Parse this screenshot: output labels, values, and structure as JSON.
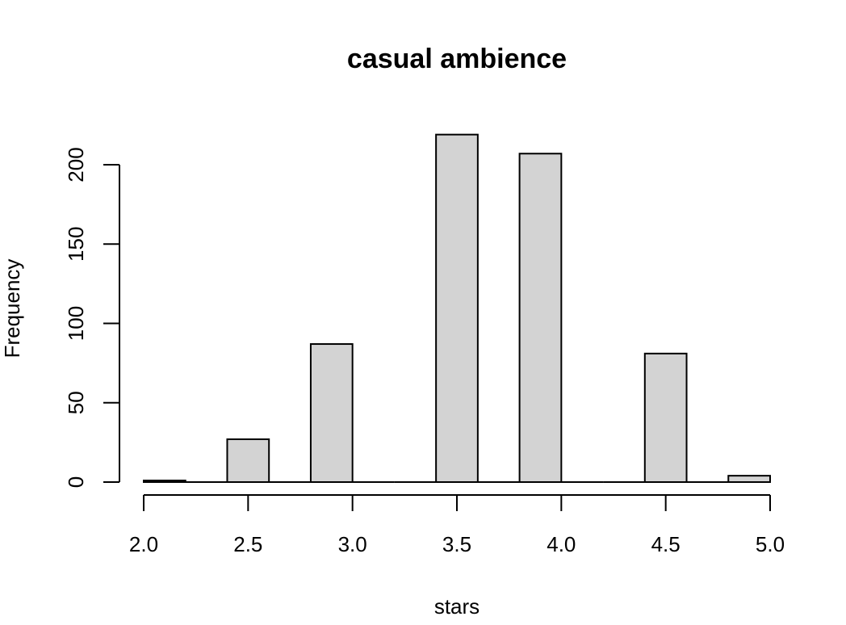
{
  "chart_data": {
    "type": "bar",
    "title": "casual ambience",
    "xlabel": "stars",
    "ylabel": "Frequency",
    "bins": [
      {
        "from": 2.0,
        "to": 2.2,
        "count": 1
      },
      {
        "from": 2.2,
        "to": 2.4,
        "count": 0
      },
      {
        "from": 2.4,
        "to": 2.6,
        "count": 27
      },
      {
        "from": 2.6,
        "to": 2.8,
        "count": 0
      },
      {
        "from": 2.8,
        "to": 3.0,
        "count": 87
      },
      {
        "from": 3.0,
        "to": 3.2,
        "count": 0
      },
      {
        "from": 3.2,
        "to": 3.4,
        "count": 0
      },
      {
        "from": 3.4,
        "to": 3.6,
        "count": 219
      },
      {
        "from": 3.6,
        "to": 3.8,
        "count": 0
      },
      {
        "from": 3.8,
        "to": 4.0,
        "count": 207
      },
      {
        "from": 4.0,
        "to": 4.2,
        "count": 0
      },
      {
        "from": 4.2,
        "to": 4.4,
        "count": 0
      },
      {
        "from": 4.4,
        "to": 4.6,
        "count": 81
      },
      {
        "from": 4.6,
        "to": 4.8,
        "count": 0
      },
      {
        "from": 4.8,
        "to": 5.0,
        "count": 4
      }
    ],
    "x_ticks": [
      "2.0",
      "2.5",
      "3.0",
      "3.5",
      "4.0",
      "4.5",
      "5.0"
    ],
    "x_tick_values": [
      2.0,
      2.5,
      3.0,
      3.5,
      4.0,
      4.5,
      5.0
    ],
    "y_ticks": [
      "0",
      "50",
      "100",
      "150",
      "200"
    ],
    "y_tick_values": [
      0,
      50,
      100,
      150,
      200
    ],
    "xlim": [
      2.0,
      5.0
    ],
    "ylim": [
      0,
      219
    ],
    "grid": false,
    "bar_color": "#d3d3d3"
  }
}
